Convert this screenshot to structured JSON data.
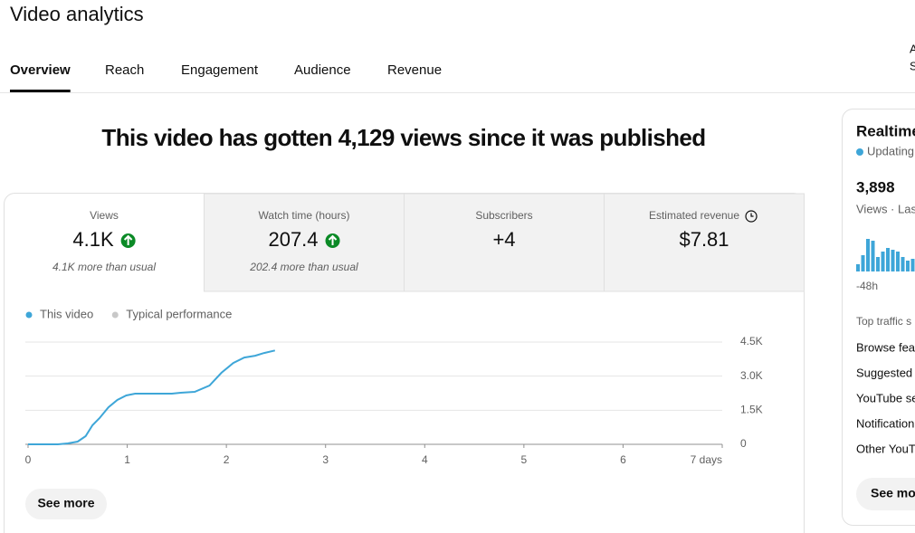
{
  "header": {
    "title": "Video analytics",
    "corner_text": [
      "A",
      "S"
    ]
  },
  "tabs": {
    "items": [
      "Overview",
      "Reach",
      "Engagement",
      "Audience",
      "Revenue"
    ],
    "active": 0
  },
  "headline": "This video has gotten 4,129 views since it was published",
  "metrics": [
    {
      "label": "Views",
      "value": "4.1K",
      "trend": "up",
      "note": "4.1K more than usual"
    },
    {
      "label": "Watch time (hours)",
      "value": "207.4",
      "trend": "up",
      "note": "202.4 more than usual"
    },
    {
      "label": "Subscribers",
      "value": "+4"
    },
    {
      "label": "Estimated revenue",
      "value": "$7.81",
      "info_icon": true
    }
  ],
  "chart_data": {
    "type": "line",
    "series": [
      {
        "name": "This video",
        "color": "#3ea6d8",
        "x": [
          0,
          0.3,
          0.4,
          0.5,
          0.58,
          0.65,
          0.72,
          0.81,
          0.9,
          0.99,
          1.08,
          1.45,
          1.54,
          1.68,
          1.83,
          1.95,
          2.07,
          2.18,
          2.29,
          2.38,
          2.49
        ],
        "values": [
          0,
          0,
          40,
          120,
          360,
          840,
          1150,
          1630,
          1950,
          2150,
          2230,
          2230,
          2270,
          2310,
          2590,
          3150,
          3580,
          3820,
          3900,
          4020,
          4129
        ]
      },
      {
        "name": "Typical performance",
        "color": "#c8c8c8",
        "x": [],
        "values": []
      }
    ],
    "xlim": [
      0,
      7
    ],
    "xticks": [
      0,
      1,
      2,
      3,
      4,
      5,
      6,
      {
        "value": 7,
        "label": "7 days"
      }
    ],
    "ylim": [
      0,
      4500
    ],
    "yticks": [
      0,
      {
        "value": 1500,
        "label": "1.5K"
      },
      {
        "value": 3000,
        "label": "3.0K"
      },
      {
        "value": 4500,
        "label": "4.5K"
      }
    ],
    "grid": true
  },
  "see_more": "See more",
  "realtime": {
    "title": "Realtime",
    "status": "Updating",
    "count": "3,898",
    "caption": "Views · Las",
    "bars": {
      "color": "#3ea6d8",
      "values": [
        8,
        18,
        36,
        34,
        16,
        22,
        26,
        24,
        22,
        16,
        12,
        14
      ]
    },
    "axis_label": "-48h",
    "section": "Top traffic s",
    "sources": [
      "Browse fea",
      "Suggested",
      "YouTube se",
      "Notification",
      "Other YouT"
    ],
    "button": "See mor"
  }
}
